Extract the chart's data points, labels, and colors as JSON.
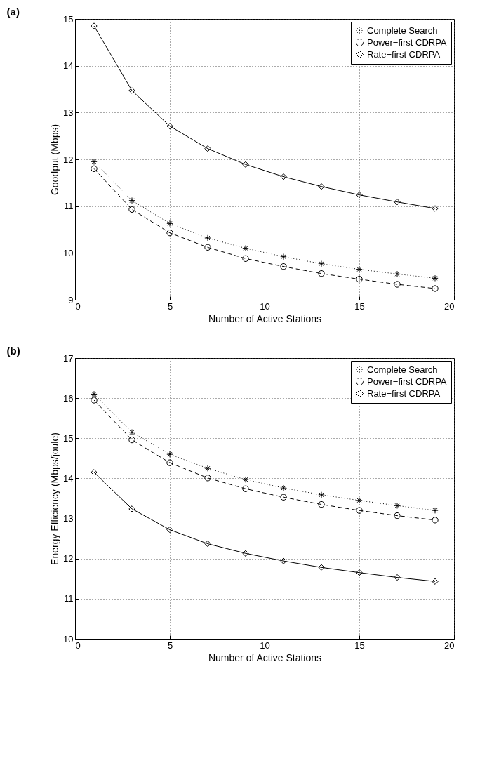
{
  "chart_data": [
    {
      "type": "line",
      "title": "(a)",
      "xlabel": "Number of Active Stations",
      "ylabel": "Goodput (Mbps)",
      "x": [
        1,
        3,
        5,
        7,
        9,
        11,
        13,
        15,
        17,
        19
      ],
      "xlim": [
        0,
        20
      ],
      "xticks": [
        0,
        5,
        10,
        15,
        20
      ],
      "ylim": [
        9,
        15
      ],
      "yticks": [
        9,
        10,
        11,
        12,
        13,
        14,
        15
      ],
      "grid": true,
      "legend": "top right",
      "series": [
        {
          "name": "Complete Search",
          "color": "#000000",
          "marker": "cross",
          "line_style": "dotted",
          "values": [
            11.95,
            11.12,
            10.63,
            10.32,
            10.1,
            9.92,
            9.77,
            9.65,
            9.55,
            9.46
          ]
        },
        {
          "name": "Power−first CDRPA",
          "color": "#000000",
          "marker": "circle",
          "line_style": "dashed",
          "values": [
            11.8,
            10.93,
            10.43,
            10.12,
            9.88,
            9.71,
            9.56,
            9.44,
            9.33,
            9.24
          ]
        },
        {
          "name": "Rate−first CDRPA",
          "color": "#000000",
          "marker": "diamond",
          "line_style": "solid",
          "values": [
            14.85,
            13.47,
            12.71,
            12.23,
            11.89,
            11.63,
            11.42,
            11.24,
            11.09,
            10.95
          ]
        }
      ]
    },
    {
      "type": "line",
      "title": "(b)",
      "xlabel": "Number of Active Stations",
      "ylabel": "Energy Efficiency (Mbps/joule)",
      "x": [
        1,
        3,
        5,
        7,
        9,
        11,
        13,
        15,
        17,
        19
      ],
      "xlim": [
        0,
        20
      ],
      "xticks": [
        0,
        5,
        10,
        15,
        20
      ],
      "ylim": [
        10,
        17
      ],
      "yticks": [
        10,
        11,
        12,
        13,
        14,
        15,
        16,
        17
      ],
      "grid": true,
      "legend": "top right",
      "series": [
        {
          "name": "Complete Search",
          "color": "#000000",
          "marker": "cross",
          "line_style": "dotted",
          "values": [
            16.1,
            15.15,
            14.6,
            14.25,
            13.97,
            13.76,
            13.59,
            13.45,
            13.32,
            13.2
          ]
        },
        {
          "name": "Power−first CDRPA",
          "color": "#000000",
          "marker": "circle",
          "line_style": "dashed",
          "values": [
            15.95,
            14.96,
            14.39,
            14.01,
            13.74,
            13.53,
            13.35,
            13.2,
            13.07,
            12.96
          ]
        },
        {
          "name": "Rate−first CDRPA",
          "color": "#000000",
          "marker": "diamond",
          "line_style": "solid",
          "values": [
            14.15,
            13.24,
            12.72,
            12.37,
            12.13,
            11.94,
            11.78,
            11.65,
            11.53,
            11.43
          ]
        }
      ]
    }
  ]
}
